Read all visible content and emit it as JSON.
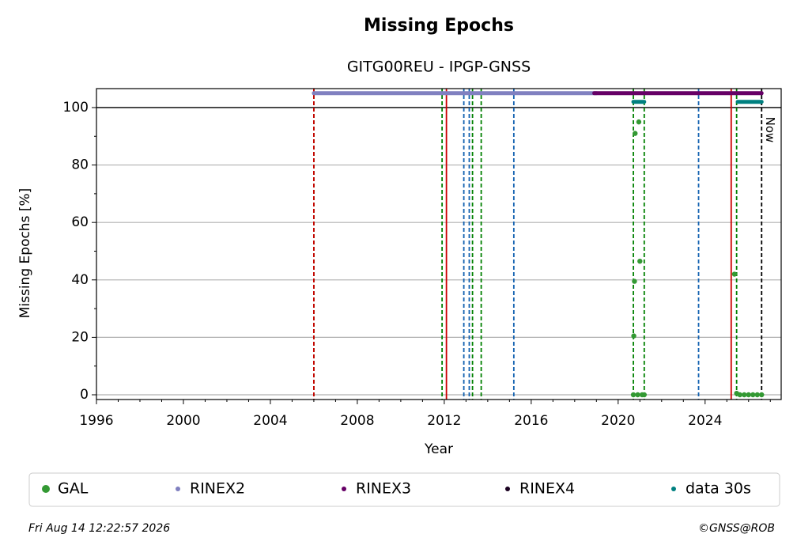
{
  "chart_data": {
    "type": "timeline",
    "title": "Missing Epochs",
    "subtitle": "GITG00REU - IPGP-GNSS",
    "x_label": "Year",
    "y_label": "Missing Epochs [%]",
    "xlim": [
      1996,
      2027.5
    ],
    "ylim": [
      -1.65,
      106.6
    ],
    "xticks": [
      1996,
      2000,
      2004,
      2008,
      2012,
      2016,
      2020,
      2024
    ],
    "xminorticks": [
      1997,
      1998,
      1999,
      2001,
      2002,
      2003,
      2005,
      2006,
      2007,
      2009,
      2010,
      2011,
      2013,
      2014,
      2015,
      2017,
      2018,
      2019,
      2021,
      2022,
      2023,
      2025,
      2026,
      2027
    ],
    "yticks": [
      0,
      20,
      40,
      60,
      80,
      100
    ],
    "yminorticks": [
      10,
      30,
      50,
      70,
      90
    ],
    "grid": true,
    "hlines": [
      100
    ],
    "series": [
      {
        "name": "GAL",
        "color": "#339933",
        "kind": "points",
        "x": [
          2020.7,
          2020.72,
          2020.75,
          2020.78,
          2020.9,
          2020.95,
          2021.0,
          2021.1,
          2021.2,
          2025.35,
          2025.45,
          2025.6,
          2025.8,
          2026.0,
          2026.2,
          2026.4,
          2026.6
        ],
        "values": [
          0,
          20.5,
          39.5,
          91,
          0,
          95,
          46.5,
          0,
          0,
          42,
          0.5,
          0,
          0,
          0,
          0,
          0,
          0
        ]
      },
      {
        "name": "RINEX2",
        "color": "#8080c0",
        "kind": "line",
        "x": [
          2006.0,
          2019.0
        ],
        "values": [
          105,
          105
        ]
      },
      {
        "name": "RINEX3",
        "color": "#660066",
        "kind": "line",
        "x": [
          2018.9,
          2026.6
        ],
        "values": [
          105,
          105
        ]
      },
      {
        "name": "RINEX4",
        "color": "#1a0020",
        "kind": "line",
        "x": [],
        "values": []
      },
      {
        "name": "data 30s",
        "color": "#008080",
        "kind": "line",
        "x": [
          2020.7,
          2021.2,
          2021.2,
          2025.5,
          2026.6
        ],
        "values": [
          102,
          102,
          null,
          102,
          102
        ]
      }
    ],
    "events": [
      {
        "x": 2006.0,
        "color": "#008000",
        "dash": true
      },
      {
        "x": 2006.0,
        "color": "#cc0000",
        "dash": true
      },
      {
        "x": 2011.9,
        "color": "#008000",
        "dash": true
      },
      {
        "x": 2012.1,
        "color": "#cc0000",
        "dash": false
      },
      {
        "x": 2012.9,
        "color": "#1060b0",
        "dash": true
      },
      {
        "x": 2013.15,
        "color": "#1060b0",
        "dash": true
      },
      {
        "x": 2013.3,
        "color": "#008000",
        "dash": true
      },
      {
        "x": 2013.7,
        "color": "#008000",
        "dash": true
      },
      {
        "x": 2015.2,
        "color": "#1060b0",
        "dash": true
      },
      {
        "x": 2020.7,
        "color": "#008000",
        "dash": true
      },
      {
        "x": 2021.2,
        "color": "#008000",
        "dash": true
      },
      {
        "x": 2023.7,
        "color": "#1060b0",
        "dash": true
      },
      {
        "x": 2025.2,
        "color": "#cc0000",
        "dash": false
      },
      {
        "x": 2025.45,
        "color": "#008000",
        "dash": true
      },
      {
        "x": 2026.6,
        "color": "#000000",
        "dash": true,
        "label": "Now"
      }
    ],
    "footer_left": "Fri Aug 14 12:22:57 2026",
    "footer_right": "©GNSS@ROB"
  }
}
